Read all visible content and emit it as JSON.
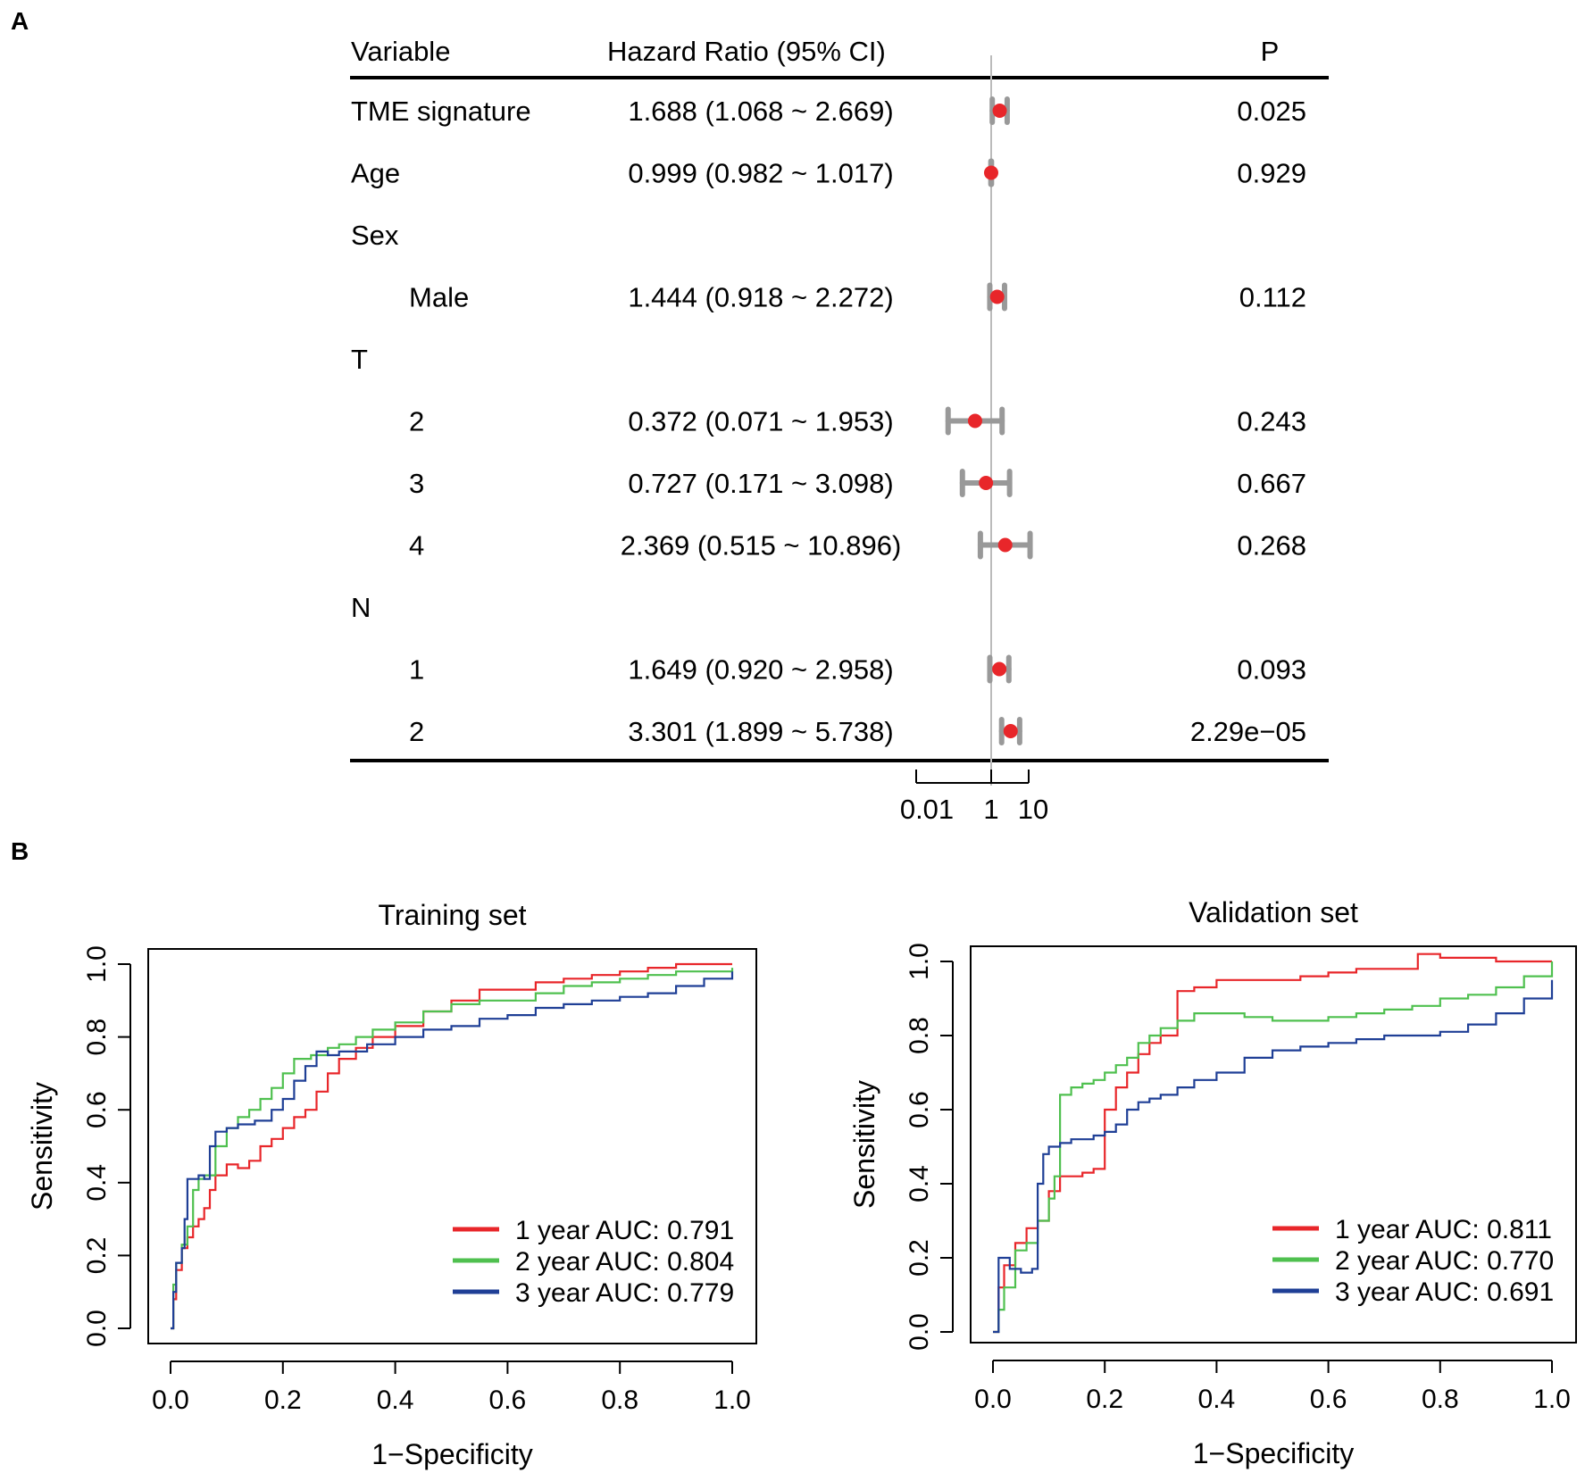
{
  "panel_labels": {
    "a": "A",
    "b": "B"
  },
  "colors": {
    "ci_bar": "#999999",
    "point": "#e8262a",
    "ref_line": "#bbbbbb",
    "year1": "#e8262a",
    "year2": "#4fc04f",
    "year3": "#1f3f96"
  },
  "chart_data": [
    {
      "type": "forest",
      "headers": {
        "variable": "Variable",
        "hr": "Hazard Ratio (95% CI)",
        "p": "P"
      },
      "rows": [
        {
          "label": "TME signature",
          "indent": 0,
          "hr_text": "1.688 (1.068 ~  2.669)",
          "hr": 1.688,
          "lo": 1.068,
          "hi": 2.669,
          "p": "0.025"
        },
        {
          "label": "Age",
          "indent": 0,
          "hr_text": "0.999 (0.982 ~  1.017)",
          "hr": 0.999,
          "lo": 0.982,
          "hi": 1.017,
          "p": "0.929"
        },
        {
          "label": "Sex",
          "indent": 0,
          "hr_text": "",
          "hr": null,
          "lo": null,
          "hi": null,
          "p": ""
        },
        {
          "label": "Male",
          "indent": 1,
          "hr_text": "1.444 (0.918 ~  2.272)",
          "hr": 1.444,
          "lo": 0.918,
          "hi": 2.272,
          "p": "0.112"
        },
        {
          "label": "T",
          "indent": 0,
          "hr_text": "",
          "hr": null,
          "lo": null,
          "hi": null,
          "p": ""
        },
        {
          "label": "2",
          "indent": 1,
          "hr_text": "0.372 (0.071 ~  1.953)",
          "hr": 0.372,
          "lo": 0.071,
          "hi": 1.953,
          "p": "0.243"
        },
        {
          "label": "3",
          "indent": 1,
          "hr_text": "0.727 (0.171 ~  3.098)",
          "hr": 0.727,
          "lo": 0.171,
          "hi": 3.098,
          "p": "0.667"
        },
        {
          "label": "4",
          "indent": 1,
          "hr_text": "2.369 (0.515 ~ 10.896)",
          "hr": 2.369,
          "lo": 0.515,
          "hi": 10.896,
          "p": "0.268"
        },
        {
          "label": "N",
          "indent": 0,
          "hr_text": "",
          "hr": null,
          "lo": null,
          "hi": null,
          "p": ""
        },
        {
          "label": "1",
          "indent": 1,
          "hr_text": "1.649 (0.920 ~  2.958)",
          "hr": 1.649,
          "lo": 0.92,
          "hi": 2.958,
          "p": "0.093"
        },
        {
          "label": "2",
          "indent": 1,
          "hr_text": "3.301 (1.899 ~  5.738)",
          "hr": 3.301,
          "lo": 1.899,
          "hi": 5.738,
          "p": "2.29e−05"
        }
      ],
      "xaxis": {
        "scale": "log10",
        "range": [
          0.01,
          10
        ],
        "ticks": [
          0.01,
          1,
          10
        ],
        "tick_labels": [
          "0.01",
          "1",
          "10"
        ],
        "reference": 1
      }
    },
    {
      "type": "line",
      "title": "Training set",
      "xlabel": "1−Specificity",
      "ylabel": "Sensitivity",
      "xlim": [
        0,
        1
      ],
      "ylim": [
        0,
        1
      ],
      "xticks": [
        "0.0",
        "0.2",
        "0.4",
        "0.6",
        "0.8",
        "1.0"
      ],
      "yticks": [
        "0.0",
        "0.2",
        "0.4",
        "0.6",
        "0.8",
        "1.0"
      ],
      "legend_position": "bottom-right",
      "series": [
        {
          "name": "1 year AUC: 0.791",
          "color_key": "year1",
          "x": [
            0,
            0.005,
            0.01,
            0.02,
            0.03,
            0.04,
            0.05,
            0.06,
            0.07,
            0.08,
            0.1,
            0.12,
            0.14,
            0.16,
            0.18,
            0.2,
            0.22,
            0.24,
            0.26,
            0.28,
            0.3,
            0.33,
            0.36,
            0.4,
            0.45,
            0.5,
            0.55,
            0.6,
            0.65,
            0.7,
            0.75,
            0.8,
            0.85,
            0.9,
            0.95,
            1.0
          ],
          "y": [
            0,
            0.08,
            0.16,
            0.22,
            0.25,
            0.28,
            0.3,
            0.33,
            0.38,
            0.42,
            0.45,
            0.44,
            0.46,
            0.5,
            0.52,
            0.55,
            0.58,
            0.6,
            0.65,
            0.7,
            0.74,
            0.77,
            0.8,
            0.83,
            0.87,
            0.9,
            0.93,
            0.93,
            0.95,
            0.96,
            0.97,
            0.98,
            0.99,
            1.0,
            1.0,
            1.0
          ]
        },
        {
          "name": "2 year AUC: 0.804",
          "color_key": "year2",
          "x": [
            0,
            0.005,
            0.01,
            0.02,
            0.03,
            0.04,
            0.05,
            0.06,
            0.08,
            0.1,
            0.12,
            0.14,
            0.16,
            0.18,
            0.2,
            0.22,
            0.25,
            0.28,
            0.3,
            0.33,
            0.36,
            0.4,
            0.45,
            0.5,
            0.55,
            0.6,
            0.65,
            0.7,
            0.75,
            0.8,
            0.85,
            0.9,
            0.95,
            1.0
          ],
          "y": [
            0,
            0.12,
            0.18,
            0.23,
            0.28,
            0.38,
            0.41,
            0.42,
            0.5,
            0.55,
            0.58,
            0.6,
            0.63,
            0.66,
            0.7,
            0.74,
            0.75,
            0.77,
            0.78,
            0.8,
            0.82,
            0.84,
            0.87,
            0.89,
            0.9,
            0.9,
            0.92,
            0.94,
            0.95,
            0.96,
            0.97,
            0.98,
            0.98,
            0.99
          ]
        },
        {
          "name": "3 year AUC: 0.779",
          "color_key": "year3",
          "x": [
            0,
            0.005,
            0.01,
            0.02,
            0.025,
            0.03,
            0.05,
            0.06,
            0.07,
            0.08,
            0.1,
            0.12,
            0.15,
            0.18,
            0.2,
            0.22,
            0.24,
            0.26,
            0.28,
            0.3,
            0.35,
            0.4,
            0.45,
            0.5,
            0.55,
            0.6,
            0.65,
            0.7,
            0.75,
            0.8,
            0.85,
            0.9,
            0.95,
            1.0
          ],
          "y": [
            0,
            0.1,
            0.18,
            0.22,
            0.3,
            0.41,
            0.42,
            0.41,
            0.5,
            0.54,
            0.55,
            0.56,
            0.57,
            0.6,
            0.63,
            0.68,
            0.72,
            0.76,
            0.75,
            0.76,
            0.78,
            0.8,
            0.82,
            0.83,
            0.85,
            0.86,
            0.88,
            0.89,
            0.9,
            0.91,
            0.92,
            0.94,
            0.96,
            0.98
          ]
        }
      ]
    },
    {
      "type": "line",
      "title": "Validation set",
      "xlabel": "1−Specificity",
      "ylabel": "Sensitivity",
      "xlim": [
        0,
        1
      ],
      "ylim": [
        0,
        1
      ],
      "xticks": [
        "0.0",
        "0.2",
        "0.4",
        "0.6",
        "0.8",
        "1.0"
      ],
      "yticks": [
        "0.0",
        "0.2",
        "0.4",
        "0.6",
        "0.8",
        "1.0"
      ],
      "legend_position": "bottom-right",
      "series": [
        {
          "name": "1 year AUC: 0.811",
          "color_key": "year1",
          "x": [
            0,
            0.01,
            0.02,
            0.04,
            0.06,
            0.08,
            0.1,
            0.12,
            0.14,
            0.16,
            0.18,
            0.2,
            0.22,
            0.24,
            0.26,
            0.28,
            0.3,
            0.33,
            0.36,
            0.4,
            0.45,
            0.5,
            0.55,
            0.6,
            0.65,
            0.7,
            0.76,
            0.8,
            0.9,
            1.0
          ],
          "y": [
            0,
            0.12,
            0.18,
            0.24,
            0.28,
            0.3,
            0.38,
            0.42,
            0.42,
            0.43,
            0.44,
            0.6,
            0.66,
            0.7,
            0.75,
            0.78,
            0.8,
            0.92,
            0.93,
            0.95,
            0.95,
            0.95,
            0.96,
            0.97,
            0.98,
            0.98,
            1.02,
            1.01,
            1.0,
            1.0
          ]
        },
        {
          "name": "2 year AUC: 0.770",
          "color_key": "year2",
          "x": [
            0,
            0.01,
            0.02,
            0.04,
            0.06,
            0.08,
            0.1,
            0.11,
            0.12,
            0.14,
            0.16,
            0.18,
            0.2,
            0.22,
            0.24,
            0.26,
            0.28,
            0.3,
            0.33,
            0.36,
            0.4,
            0.45,
            0.5,
            0.55,
            0.6,
            0.65,
            0.7,
            0.75,
            0.8,
            0.85,
            0.9,
            0.95,
            1.0
          ],
          "y": [
            0,
            0.06,
            0.12,
            0.22,
            0.24,
            0.3,
            0.36,
            0.42,
            0.64,
            0.66,
            0.67,
            0.68,
            0.7,
            0.72,
            0.74,
            0.78,
            0.8,
            0.82,
            0.84,
            0.86,
            0.86,
            0.85,
            0.84,
            0.84,
            0.85,
            0.86,
            0.87,
            0.88,
            0.9,
            0.91,
            0.93,
            0.96,
            1.0
          ]
        },
        {
          "name": "3 year AUC: 0.691",
          "color_key": "year3",
          "x": [
            0,
            0.01,
            0.03,
            0.05,
            0.07,
            0.08,
            0.09,
            0.1,
            0.12,
            0.14,
            0.16,
            0.18,
            0.2,
            0.22,
            0.24,
            0.26,
            0.28,
            0.3,
            0.33,
            0.36,
            0.4,
            0.45,
            0.5,
            0.55,
            0.6,
            0.65,
            0.7,
            0.75,
            0.8,
            0.85,
            0.9,
            0.95,
            1.0
          ],
          "y": [
            0,
            0.2,
            0.17,
            0.16,
            0.17,
            0.4,
            0.48,
            0.5,
            0.51,
            0.52,
            0.52,
            0.53,
            0.54,
            0.56,
            0.6,
            0.62,
            0.63,
            0.64,
            0.66,
            0.68,
            0.7,
            0.74,
            0.76,
            0.77,
            0.78,
            0.79,
            0.8,
            0.8,
            0.81,
            0.83,
            0.86,
            0.9,
            0.95
          ]
        }
      ]
    }
  ]
}
